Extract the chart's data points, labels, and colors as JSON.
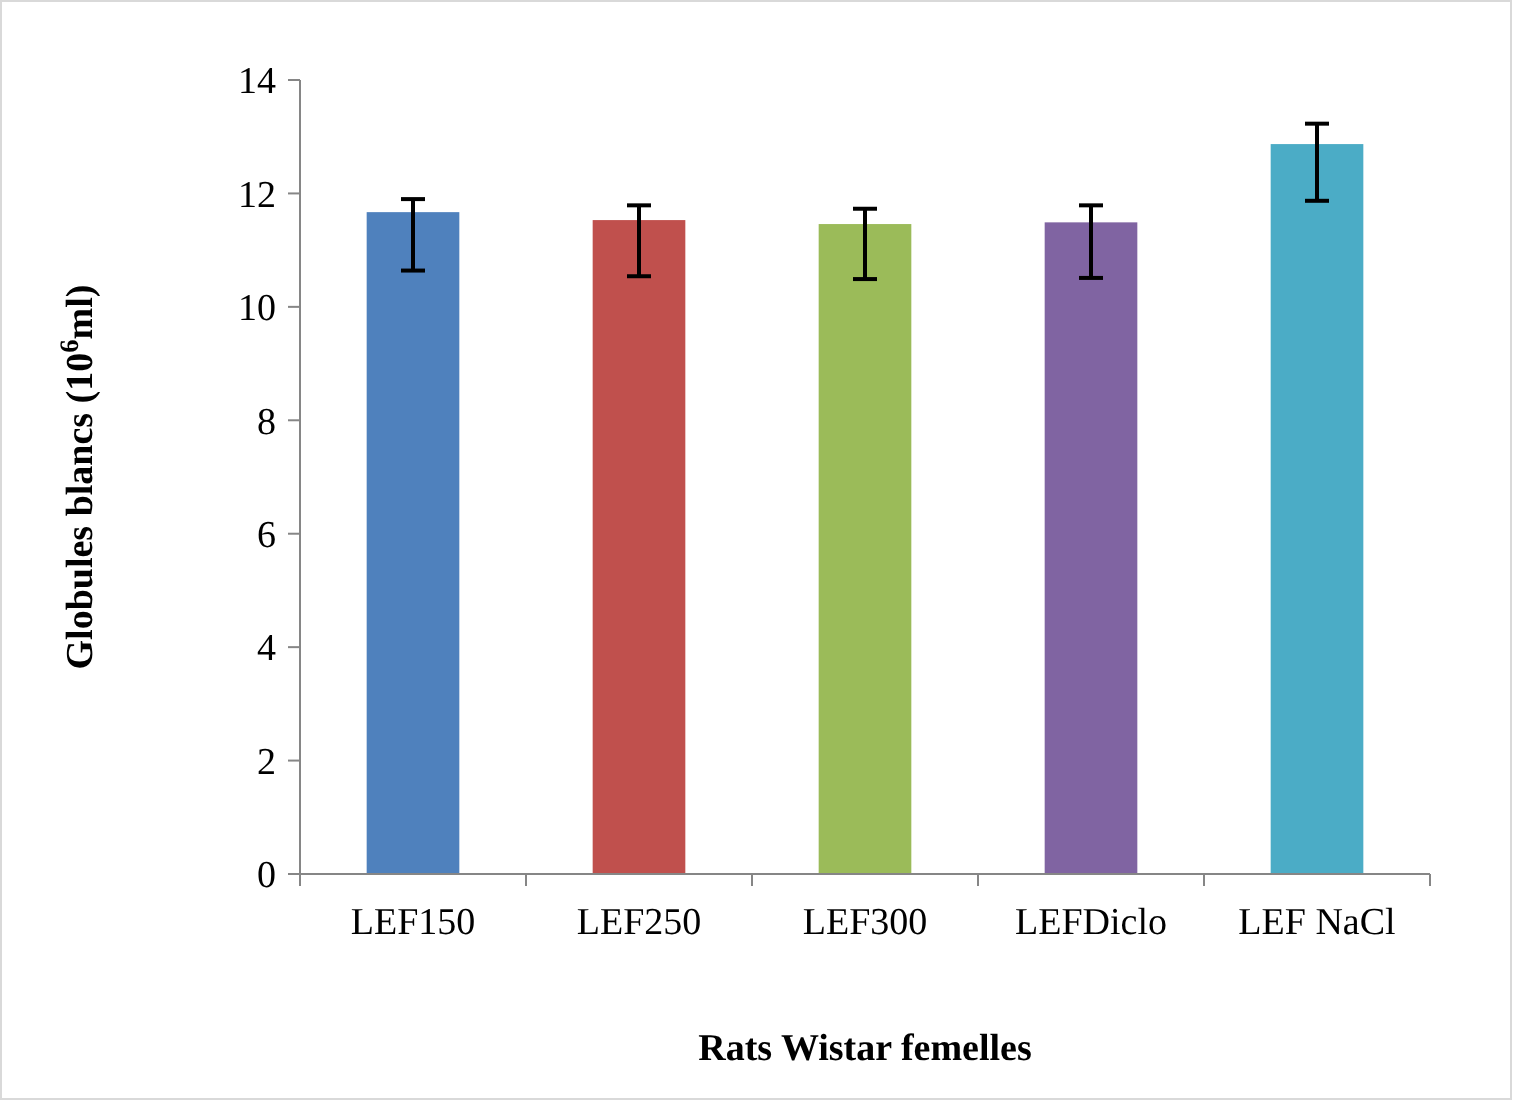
{
  "chart_data": {
    "type": "bar",
    "xlabel": "Rats Wistar femelles",
    "ylabel": "Globules blancs (10$^{6}$ml)",
    "categories": [
      "LEF150",
      "LEF250",
      "LEF300",
      "LEFDiclo",
      "LEF NaCl"
    ],
    "values": [
      11.67,
      11.53,
      11.46,
      11.49,
      12.87
    ],
    "colors": [
      "#4f81bd",
      "#c0504d",
      "#9bbb59",
      "#8064a2",
      "#4bacc6"
    ],
    "errors": [
      [
        10.64,
        11.9
      ],
      [
        10.54,
        11.79
      ],
      [
        10.49,
        11.73
      ],
      [
        10.51,
        11.79
      ],
      [
        11.87,
        13.23
      ]
    ],
    "ylim": [
      0,
      14
    ],
    "yticks": [
      0,
      2,
      4,
      6,
      8,
      10,
      12,
      14
    ],
    "grid": false
  }
}
